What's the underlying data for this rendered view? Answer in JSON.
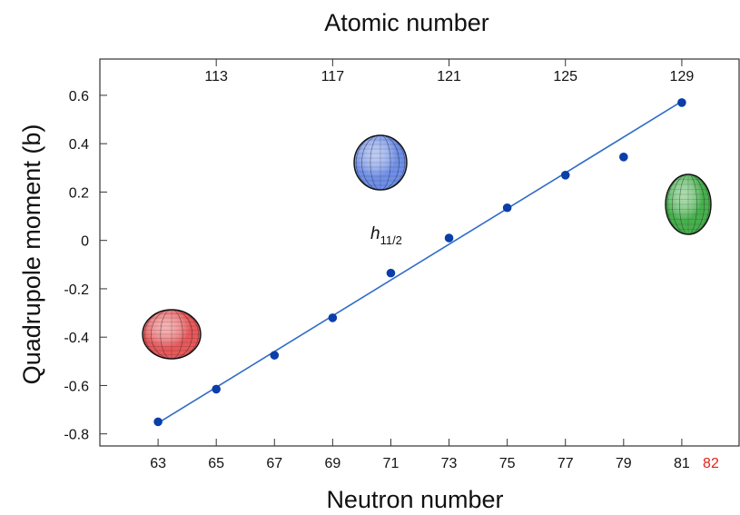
{
  "chart_data": {
    "type": "scatter",
    "title": "Atomic number",
    "xlabel": "Neutron number",
    "ylabel": "Quadrupole moment (b)",
    "xlim": [
      61,
      83
    ],
    "ylim": [
      -0.85,
      0.75
    ],
    "x_ticks": [
      "63",
      "65",
      "67",
      "69",
      "71",
      "73",
      "75",
      "77",
      "79",
      "81"
    ],
    "x_tick_extra": {
      "label": "82",
      "value": 82,
      "color": "#e32219"
    },
    "y_ticks": [
      "-0.8",
      "-0.6",
      "-0.4",
      "-0.2",
      "0",
      "0.2",
      "0.4",
      "0.6"
    ],
    "top_axis_ticks": [
      {
        "label": "113",
        "neutron": 65
      },
      {
        "label": "117",
        "neutron": 69
      },
      {
        "label": "121",
        "neutron": 73
      },
      {
        "label": "125",
        "neutron": 77
      },
      {
        "label": "129",
        "neutron": 81
      }
    ],
    "series": [
      {
        "color": "#0a3ea8",
        "points": [
          {
            "x": 63,
            "y": -0.75
          },
          {
            "x": 65,
            "y": -0.615
          },
          {
            "x": 67,
            "y": -0.475
          },
          {
            "x": 69,
            "y": -0.32
          },
          {
            "x": 71,
            "y": -0.135
          },
          {
            "x": 73,
            "y": 0.01
          },
          {
            "x": 75,
            "y": 0.135
          },
          {
            "x": 77,
            "y": 0.27
          },
          {
            "x": 79,
            "y": 0.345
          },
          {
            "x": 81,
            "y": 0.57
          }
        ]
      }
    ],
    "fit_line": {
      "color": "#2f6cc7",
      "from": {
        "x": 63,
        "y": -0.755
      },
      "to": {
        "x": 81,
        "y": 0.575
      }
    },
    "annotation": {
      "base": "h",
      "subscript": "11/2"
    },
    "shapes": [
      {
        "kind": "oblate",
        "color": "#e8585a"
      },
      {
        "kind": "spherical",
        "color": "#6f8fe8"
      },
      {
        "kind": "prolate",
        "color": "#47b04d"
      }
    ]
  }
}
